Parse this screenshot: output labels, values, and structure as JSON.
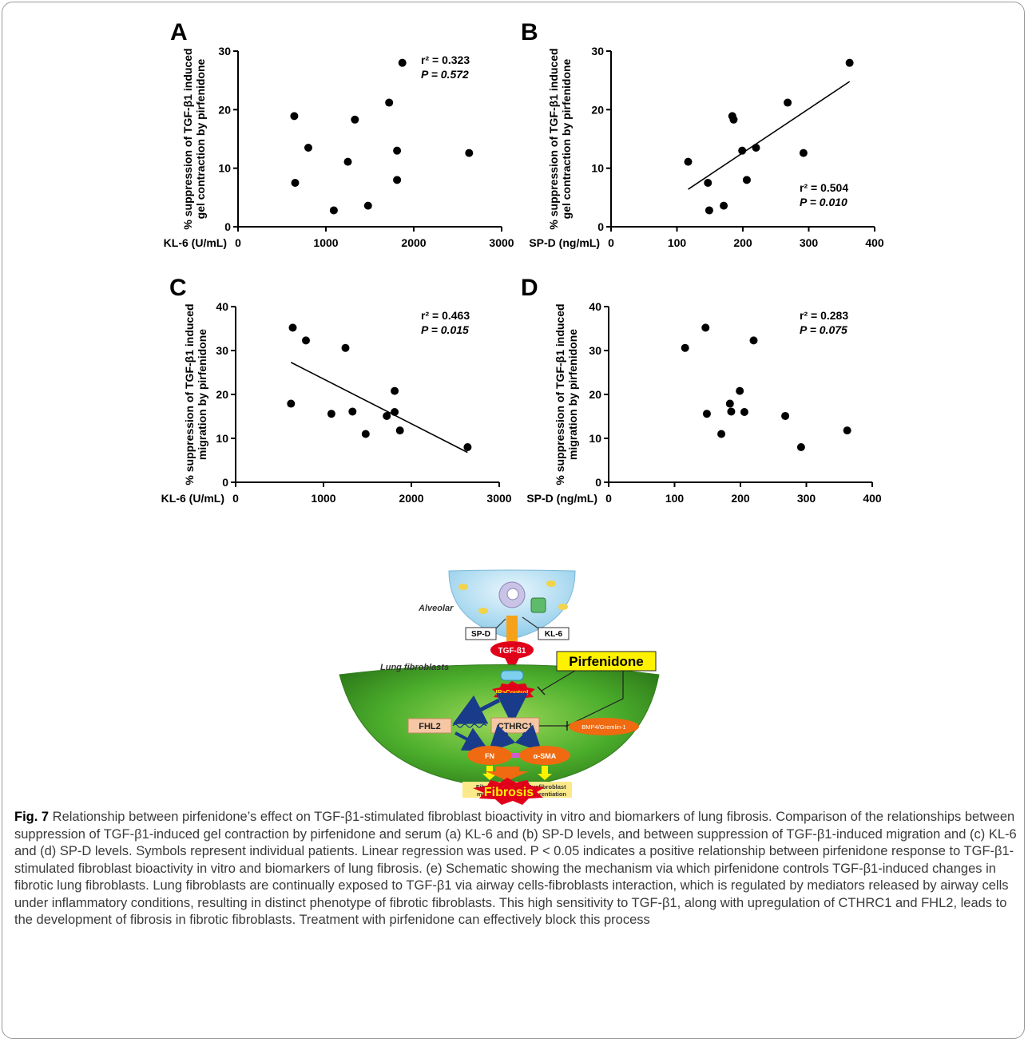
{
  "chart_data": [
    {
      "id": "A",
      "type": "scatter",
      "panel_label": "A",
      "xlabel": "KL-6 (U/mL)",
      "ylabel": [
        "% suppression of TGF-β1 induced",
        "gel contraction by pirfenidone"
      ],
      "xlim": [
        0,
        3000
      ],
      "ylim": [
        0,
        30
      ],
      "xticks": [
        0,
        1000,
        2000,
        3000
      ],
      "yticks": [
        0,
        10,
        20,
        30
      ],
      "stats": {
        "r2": "r² = 0.323",
        "p": "P = 0.572"
      },
      "stats_position": "top-right",
      "regression_line": null,
      "points": [
        {
          "x": 640,
          "y": 18.9
        },
        {
          "x": 650,
          "y": 7.5
        },
        {
          "x": 800,
          "y": 13.5
        },
        {
          "x": 1090,
          "y": 2.8
        },
        {
          "x": 1250,
          "y": 11.1
        },
        {
          "x": 1330,
          "y": 18.3
        },
        {
          "x": 1480,
          "y": 3.6
        },
        {
          "x": 1720,
          "y": 21.2
        },
        {
          "x": 1810,
          "y": 13.0
        },
        {
          "x": 1810,
          "y": 8.0
        },
        {
          "x": 1870,
          "y": 28.0
        },
        {
          "x": 2630,
          "y": 12.6
        }
      ]
    },
    {
      "id": "B",
      "type": "scatter",
      "panel_label": "B",
      "xlabel": "SP-D (ng/mL)",
      "ylabel": [
        "% suppression of TGF-β1 induced",
        "gel contraction by pirfenidone"
      ],
      "xlim": [
        0,
        400
      ],
      "ylim": [
        0,
        30
      ],
      "xticks": [
        0,
        100,
        200,
        300,
        400
      ],
      "yticks": [
        0,
        10,
        20,
        30
      ],
      "stats": {
        "r2": "r² = 0.504",
        "p": "P = 0.010"
      },
      "stats_position": "bottom-right",
      "regression_line": {
        "x1": 117,
        "y1": 6.4,
        "x2": 362,
        "y2": 24.8
      },
      "points": [
        {
          "x": 117,
          "y": 11.1
        },
        {
          "x": 147,
          "y": 7.5
        },
        {
          "x": 149,
          "y": 2.8
        },
        {
          "x": 171,
          "y": 3.6
        },
        {
          "x": 184,
          "y": 18.9
        },
        {
          "x": 186,
          "y": 18.3
        },
        {
          "x": 199,
          "y": 13.0
        },
        {
          "x": 206,
          "y": 8.0
        },
        {
          "x": 220,
          "y": 13.5
        },
        {
          "x": 268,
          "y": 21.2
        },
        {
          "x": 292,
          "y": 12.6
        },
        {
          "x": 362,
          "y": 28.0
        }
      ]
    },
    {
      "id": "C",
      "type": "scatter",
      "panel_label": "C",
      "xlabel": "KL-6 (U/mL)",
      "ylabel": [
        "% suppression of TGF-β1 induced",
        "migration by pirfenidone"
      ],
      "xlim": [
        0,
        3000
      ],
      "ylim": [
        0,
        40
      ],
      "xticks": [
        0,
        1000,
        2000,
        3000
      ],
      "yticks": [
        0,
        10,
        20,
        30,
        40
      ],
      "stats": {
        "r2": "r² = 0.463",
        "p": "P = 0.015"
      },
      "stats_position": "top-right",
      "regression_line": {
        "x1": 630,
        "y1": 27.3,
        "x2": 2640,
        "y2": 6.8
      },
      "points": [
        {
          "x": 630,
          "y": 17.9
        },
        {
          "x": 650,
          "y": 35.2
        },
        {
          "x": 800,
          "y": 32.3
        },
        {
          "x": 1090,
          "y": 15.6
        },
        {
          "x": 1250,
          "y": 30.6
        },
        {
          "x": 1330,
          "y": 16.1
        },
        {
          "x": 1480,
          "y": 11.0
        },
        {
          "x": 1720,
          "y": 15.1
        },
        {
          "x": 1810,
          "y": 20.8
        },
        {
          "x": 1810,
          "y": 16.0
        },
        {
          "x": 1870,
          "y": 11.8
        },
        {
          "x": 2640,
          "y": 8.0
        }
      ]
    },
    {
      "id": "D",
      "type": "scatter",
      "panel_label": "D",
      "xlabel": "SP-D (ng/mL)",
      "ylabel": [
        "% suppression of TGF-β1 induced",
        "migration by pirfenidone"
      ],
      "xlim": [
        0,
        400
      ],
      "ylim": [
        0,
        40
      ],
      "xticks": [
        0,
        100,
        200,
        300,
        400
      ],
      "yticks": [
        0,
        10,
        20,
        30,
        40
      ],
      "stats": {
        "r2": "r² = 0.283",
        "p": "P = 0.075"
      },
      "stats_position": "top-right",
      "regression_line": null,
      "points": [
        {
          "x": 116,
          "y": 30.6
        },
        {
          "x": 147,
          "y": 35.2
        },
        {
          "x": 149,
          "y": 15.6
        },
        {
          "x": 171,
          "y": 11.0
        },
        {
          "x": 184,
          "y": 17.9
        },
        {
          "x": 186,
          "y": 16.1
        },
        {
          "x": 199,
          "y": 20.8
        },
        {
          "x": 206,
          "y": 16.0
        },
        {
          "x": 220,
          "y": 32.3
        },
        {
          "x": 268,
          "y": 15.1
        },
        {
          "x": 292,
          "y": 8.0
        },
        {
          "x": 362,
          "y": 11.8
        }
      ]
    }
  ],
  "schematic": {
    "panel_label": "E",
    "alveolar": "Alveolar",
    "lung_fibroblasts": "Lung fibroblasts",
    "spd": "SP-D",
    "kl6": "KL-6",
    "tgf": "TGF-β1",
    "pirfenidone": "Pirfenidone",
    "ip_control": "IP>Control",
    "fhl2": "FHL2",
    "cthrc1": "CTHRC1",
    "bmp4": "BMP4/Gremlin-1",
    "fn": "FN",
    "asma": "α-SMA",
    "fib_migration": [
      "Fibroblast",
      "migration"
    ],
    "myo_diff": [
      "Myofibroblast",
      "differentiation"
    ],
    "fibrosis": "Fibrosis",
    "colors": {
      "tgf_red": "#e0001a",
      "pirfenidone_yellow": "#fff200",
      "fibroblast_green": "#4cae2c",
      "node_orange": "#ef6a10",
      "arrow_blue": "#1a3a8a",
      "fhl2_box": "#f5c7a5",
      "outcome_box": "#fbe98a",
      "alveolar_blue": "#cfe9f7"
    }
  },
  "caption": {
    "fig_label": "Fig. 7",
    "text": " Relationship between pirfenidone’s effect on TGF-β1-stimulated fibroblast bioactivity in vitro and biomarkers of lung fibrosis. Comparison of the relationships between suppression of TGF-β1-induced gel contraction by pirfenidone and serum (a) KL-6 and (b) SP-D levels, and between suppression of TGF-β1-induced migration and (c) KL-6 and (d) SP-D levels. Symbols represent individual patients. Linear regression was used. P < 0.05 indicates a positive relationship between pirfenidone response to TGF-β1-stimulated fibroblast bioactivity in vitro and biomarkers of lung fibrosis. (e) Schematic showing the mechanism via which pirfenidone controls TGF-β1-induced changes in fibrotic lung fibroblasts. Lung fibroblasts are continually exposed to TGF-β1 via airway cells-fibroblasts interaction, which is regulated by mediators released by airway cells under inflammatory conditions, resulting in distinct phenotype of fibrotic fibroblasts. This high sensitivity to TGF-β1, along with upregulation of CTHRC1 and FHL2, leads to the development of fibrosis in fibrotic fibroblasts. Treatment with pirfenidone can effectively block this process"
  }
}
